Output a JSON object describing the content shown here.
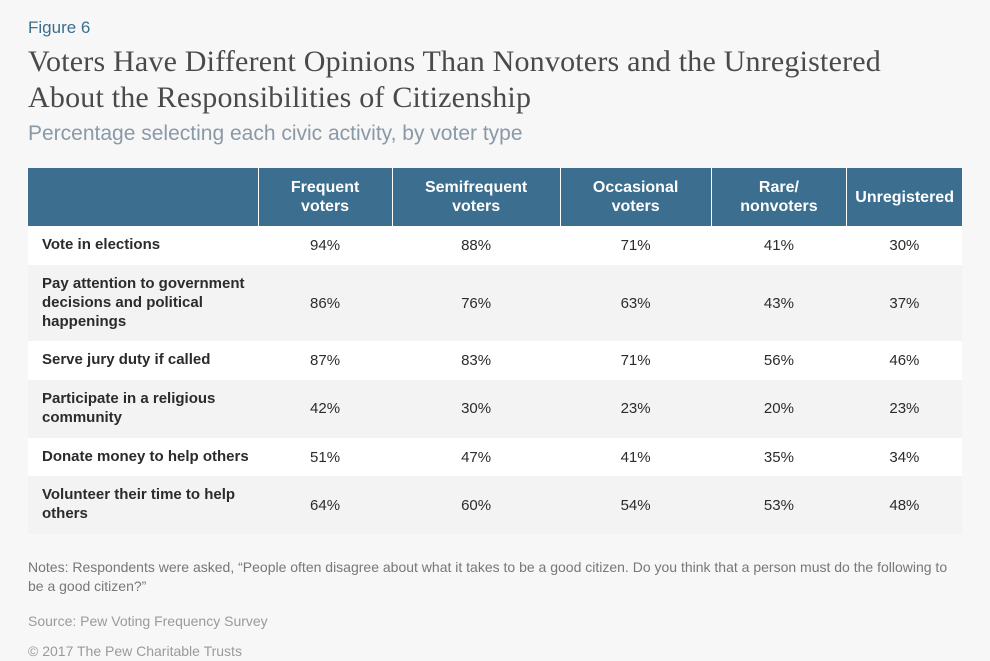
{
  "figure_label": "Figure 6",
  "title": "Voters Have Different Opinions Than Nonvoters and the Unregistered About the Responsibilities of Citizenship",
  "subtitle": "Percentage selecting each civic activity, by voter type",
  "table": {
    "type": "table",
    "header_bg": "#3b6e8f",
    "header_fg": "#ffffff",
    "row_odd_bg": "#ffffff",
    "row_even_bg": "#f3f3f3",
    "columns": [
      "",
      "Frequent voters",
      "Semifrequent voters",
      "Occasional voters",
      "Rare/ nonvoters",
      "Unregistered"
    ],
    "rows": [
      {
        "label": "Vote in elections",
        "values": [
          "94%",
          "88%",
          "71%",
          "41%",
          "30%"
        ]
      },
      {
        "label": "Pay attention to government decisions and political happenings",
        "values": [
          "86%",
          "76%",
          "63%",
          "43%",
          "37%"
        ]
      },
      {
        "label": "Serve jury duty if called",
        "values": [
          "87%",
          "83%",
          "71%",
          "56%",
          "46%"
        ]
      },
      {
        "label": "Participate in a religious community",
        "values": [
          "42%",
          "30%",
          "23%",
          "20%",
          "23%"
        ]
      },
      {
        "label": "Donate money to help others",
        "values": [
          "51%",
          "47%",
          "41%",
          "35%",
          "34%"
        ]
      },
      {
        "label": "Volunteer their time to help others",
        "values": [
          "64%",
          "60%",
          "54%",
          "53%",
          "48%"
        ]
      }
    ]
  },
  "notes": "Notes: Respondents were asked, “People often disagree about what it takes to be a good citizen. Do you think that a person must do the following to be a good citizen?”",
  "source": "Source: Pew Voting Frequency Survey",
  "copyright": "© 2017 The Pew Charitable Trusts",
  "colors": {
    "page_bg": "#f7f7f8",
    "label_color": "#3b6e8f",
    "title_color": "#4a4a4a",
    "subtitle_color": "#8a99a6",
    "notes_color": "#777777",
    "meta_color": "#9a9a9a"
  },
  "fonts": {
    "title_size_pt": 30,
    "subtitle_size_pt": 21,
    "body_size_pt": 15,
    "notes_size_pt": 14
  }
}
